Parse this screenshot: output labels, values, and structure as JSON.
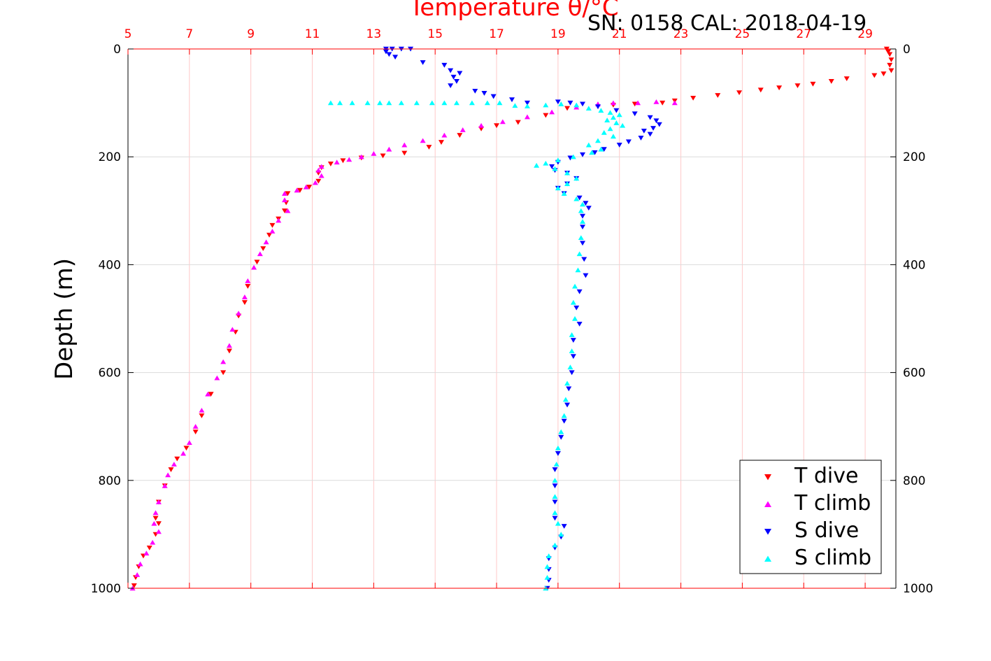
{
  "chart_data": {
    "type": "scatter",
    "subtitle": "SN: 0158  CAL: 2018-04-19",
    "xlabel": "Temperature θ/°C",
    "ylabel": "Depth (m)",
    "xlim": [
      5,
      30
    ],
    "ylim": [
      0,
      1000
    ],
    "y_reversed": true,
    "xticks": [
      5,
      7,
      9,
      11,
      13,
      15,
      17,
      19,
      21,
      23,
      25,
      27,
      29
    ],
    "yticks": [
      0,
      200,
      400,
      600,
      800,
      1000
    ],
    "x_axis_position": "top",
    "grid": true,
    "legend_position": "bottom-right",
    "colors": {
      "axis_top": "#ff0000",
      "x_grid": "#ffc8c8",
      "y_grid": "#dcdcdc"
    },
    "series": [
      {
        "name": "T dive",
        "marker": "triangle-down",
        "color": "#ff0000",
        "points": [
          [
            29.7,
            0
          ],
          [
            29.75,
            5
          ],
          [
            29.8,
            10
          ],
          [
            29.85,
            20
          ],
          [
            29.8,
            30
          ],
          [
            29.85,
            40
          ],
          [
            29.6,
            46
          ],
          [
            29.3,
            49
          ],
          [
            28.4,
            55
          ],
          [
            27.9,
            60
          ],
          [
            27.3,
            65
          ],
          [
            26.8,
            68
          ],
          [
            26.2,
            72
          ],
          [
            25.6,
            76
          ],
          [
            24.9,
            81
          ],
          [
            24.2,
            86
          ],
          [
            23.4,
            91
          ],
          [
            22.8,
            96
          ],
          [
            22.4,
            100
          ],
          [
            21.5,
            102
          ],
          [
            20.8,
            104
          ],
          [
            19.3,
            110
          ],
          [
            18.6,
            123
          ],
          [
            17.7,
            136
          ],
          [
            17.0,
            142
          ],
          [
            16.5,
            148
          ],
          [
            15.8,
            160
          ],
          [
            15.2,
            173
          ],
          [
            14.8,
            182
          ],
          [
            14.0,
            193
          ],
          [
            13.3,
            198
          ],
          [
            12.6,
            202
          ],
          [
            12.0,
            207
          ],
          [
            11.6,
            213
          ],
          [
            11.3,
            220
          ],
          [
            11.2,
            230
          ],
          [
            11.2,
            245
          ],
          [
            10.9,
            256
          ],
          [
            10.6,
            262
          ],
          [
            10.2,
            268
          ],
          [
            10.15,
            285
          ],
          [
            10.1,
            300
          ],
          [
            9.9,
            315
          ],
          [
            9.7,
            327
          ],
          [
            9.6,
            345
          ],
          [
            9.4,
            370
          ],
          [
            9.2,
            395
          ],
          [
            8.9,
            440
          ],
          [
            8.8,
            470
          ],
          [
            8.6,
            495
          ],
          [
            8.5,
            525
          ],
          [
            8.3,
            560
          ],
          [
            8.1,
            600
          ],
          [
            7.7,
            640
          ],
          [
            7.4,
            680
          ],
          [
            7.2,
            710
          ],
          [
            6.9,
            740
          ],
          [
            6.6,
            760
          ],
          [
            6.4,
            780
          ],
          [
            6.2,
            810
          ],
          [
            6.0,
            840
          ],
          [
            5.9,
            870
          ],
          [
            6.0,
            880
          ],
          [
            5.9,
            900
          ],
          [
            5.7,
            925
          ],
          [
            5.5,
            940
          ],
          [
            5.35,
            960
          ],
          [
            5.25,
            980
          ],
          [
            5.2,
            995
          ]
        ]
      },
      {
        "name": "T climb",
        "marker": "triangle-up",
        "color": "#ff00ff",
        "points": [
          [
            22.8,
            100
          ],
          [
            22.2,
            98
          ],
          [
            21.6,
            100
          ],
          [
            20.8,
            100
          ],
          [
            20.3,
            102
          ],
          [
            19.6,
            108
          ],
          [
            18.8,
            117
          ],
          [
            18.0,
            126
          ],
          [
            17.2,
            135
          ],
          [
            16.5,
            142
          ],
          [
            15.9,
            150
          ],
          [
            15.3,
            160
          ],
          [
            14.6,
            170
          ],
          [
            14.0,
            178
          ],
          [
            13.5,
            186
          ],
          [
            13.0,
            194
          ],
          [
            12.6,
            200
          ],
          [
            12.2,
            205
          ],
          [
            11.8,
            210
          ],
          [
            11.3,
            218
          ],
          [
            11.2,
            225
          ],
          [
            11.3,
            235
          ],
          [
            11.1,
            248
          ],
          [
            10.8,
            256
          ],
          [
            10.5,
            262
          ],
          [
            10.1,
            268
          ],
          [
            10.1,
            280
          ],
          [
            10.2,
            300
          ],
          [
            9.9,
            318
          ],
          [
            9.7,
            338
          ],
          [
            9.5,
            358
          ],
          [
            9.3,
            380
          ],
          [
            9.1,
            405
          ],
          [
            8.9,
            430
          ],
          [
            8.8,
            460
          ],
          [
            8.6,
            490
          ],
          [
            8.4,
            520
          ],
          [
            8.3,
            550
          ],
          [
            8.1,
            580
          ],
          [
            7.9,
            610
          ],
          [
            7.6,
            640
          ],
          [
            7.4,
            670
          ],
          [
            7.2,
            700
          ],
          [
            7.0,
            730
          ],
          [
            6.8,
            750
          ],
          [
            6.5,
            770
          ],
          [
            6.3,
            790
          ],
          [
            6.2,
            810
          ],
          [
            6.0,
            840
          ],
          [
            5.9,
            860
          ],
          [
            5.85,
            880
          ],
          [
            6.0,
            895
          ],
          [
            5.8,
            915
          ],
          [
            5.6,
            935
          ],
          [
            5.4,
            955
          ],
          [
            5.3,
            975
          ],
          [
            5.15,
            1000
          ]
        ]
      },
      {
        "name": "S dive",
        "marker": "triangle-down",
        "color": "#0000ff",
        "points": [
          [
            13.4,
            0
          ],
          [
            13.6,
            0
          ],
          [
            13.9,
            0
          ],
          [
            14.2,
            0
          ],
          [
            13.4,
            5
          ],
          [
            13.5,
            10
          ],
          [
            13.7,
            15
          ],
          [
            14.6,
            25
          ],
          [
            15.3,
            30
          ],
          [
            15.5,
            40
          ],
          [
            15.8,
            45
          ],
          [
            15.6,
            52
          ],
          [
            15.7,
            60
          ],
          [
            15.5,
            68
          ],
          [
            16.3,
            78
          ],
          [
            16.6,
            82
          ],
          [
            16.9,
            88
          ],
          [
            17.5,
            94
          ],
          [
            18.0,
            100
          ],
          [
            19.0,
            98
          ],
          [
            19.4,
            100
          ],
          [
            19.8,
            102
          ],
          [
            20.3,
            107
          ],
          [
            20.9,
            114
          ],
          [
            21.5,
            120
          ],
          [
            22.0,
            127
          ],
          [
            22.2,
            133
          ],
          [
            22.3,
            140
          ],
          [
            22.1,
            147
          ],
          [
            21.8,
            152
          ],
          [
            22.0,
            158
          ],
          [
            21.7,
            165
          ],
          [
            21.3,
            172
          ],
          [
            21.0,
            178
          ],
          [
            20.5,
            186
          ],
          [
            20.2,
            192
          ],
          [
            19.8,
            196
          ],
          [
            19.4,
            202
          ],
          [
            19.0,
            210
          ],
          [
            18.8,
            218
          ],
          [
            18.9,
            225
          ],
          [
            19.3,
            230
          ],
          [
            19.6,
            240
          ],
          [
            19.3,
            250
          ],
          [
            19.0,
            258
          ],
          [
            19.2,
            268
          ],
          [
            19.7,
            276
          ],
          [
            19.9,
            286
          ],
          [
            20.0,
            295
          ],
          [
            19.8,
            310
          ],
          [
            19.8,
            330
          ],
          [
            19.8,
            360
          ],
          [
            19.85,
            390
          ],
          [
            19.9,
            420
          ],
          [
            19.7,
            450
          ],
          [
            19.6,
            480
          ],
          [
            19.7,
            510
          ],
          [
            19.5,
            540
          ],
          [
            19.5,
            570
          ],
          [
            19.45,
            600
          ],
          [
            19.35,
            630
          ],
          [
            19.3,
            660
          ],
          [
            19.2,
            690
          ],
          [
            19.1,
            720
          ],
          [
            19.0,
            750
          ],
          [
            18.9,
            780
          ],
          [
            18.9,
            810
          ],
          [
            18.9,
            840
          ],
          [
            18.9,
            870
          ],
          [
            19.2,
            885
          ],
          [
            19.1,
            905
          ],
          [
            18.9,
            925
          ],
          [
            18.7,
            945
          ],
          [
            18.7,
            965
          ],
          [
            18.7,
            985
          ],
          [
            18.65,
            1000
          ]
        ]
      },
      {
        "name": "S climb",
        "marker": "triangle-up",
        "color": "#00ffff",
        "points": [
          [
            11.6,
            100
          ],
          [
            11.9,
            100
          ],
          [
            12.3,
            100
          ],
          [
            12.8,
            100
          ],
          [
            13.2,
            100
          ],
          [
            13.5,
            100
          ],
          [
            13.9,
            100
          ],
          [
            14.4,
            100
          ],
          [
            14.9,
            100
          ],
          [
            15.3,
            100
          ],
          [
            15.7,
            100
          ],
          [
            16.2,
            100
          ],
          [
            16.7,
            100
          ],
          [
            17.1,
            100
          ],
          [
            17.6,
            105
          ],
          [
            18.0,
            106
          ],
          [
            18.6,
            104
          ],
          [
            19.1,
            102
          ],
          [
            19.6,
            104
          ],
          [
            20.0,
            110
          ],
          [
            20.4,
            114
          ],
          [
            20.7,
            118
          ],
          [
            21.0,
            122
          ],
          [
            20.8,
            127
          ],
          [
            20.6,
            132
          ],
          [
            20.9,
            137
          ],
          [
            21.1,
            142
          ],
          [
            20.7,
            148
          ],
          [
            20.5,
            155
          ],
          [
            20.8,
            162
          ],
          [
            20.3,
            170
          ],
          [
            20.0,
            178
          ],
          [
            20.4,
            186
          ],
          [
            20.1,
            192
          ],
          [
            19.5,
            200
          ],
          [
            19.0,
            206
          ],
          [
            18.6,
            212
          ],
          [
            18.3,
            216
          ],
          [
            18.9,
            222
          ],
          [
            19.3,
            230
          ],
          [
            19.6,
            240
          ],
          [
            19.3,
            250
          ],
          [
            19.0,
            258
          ],
          [
            19.2,
            268
          ],
          [
            19.6,
            278
          ],
          [
            19.8,
            288
          ],
          [
            19.75,
            300
          ],
          [
            19.8,
            320
          ],
          [
            19.75,
            350
          ],
          [
            19.7,
            380
          ],
          [
            19.65,
            410
          ],
          [
            19.55,
            440
          ],
          [
            19.5,
            470
          ],
          [
            19.55,
            500
          ],
          [
            19.45,
            530
          ],
          [
            19.45,
            560
          ],
          [
            19.4,
            590
          ],
          [
            19.3,
            620
          ],
          [
            19.25,
            650
          ],
          [
            19.2,
            680
          ],
          [
            19.1,
            710
          ],
          [
            19.0,
            740
          ],
          [
            18.95,
            770
          ],
          [
            18.9,
            800
          ],
          [
            18.9,
            830
          ],
          [
            18.9,
            860
          ],
          [
            19.0,
            880
          ],
          [
            19.1,
            900
          ],
          [
            18.9,
            920
          ],
          [
            18.7,
            940
          ],
          [
            18.65,
            960
          ],
          [
            18.65,
            980
          ],
          [
            18.6,
            1000
          ]
        ]
      }
    ]
  }
}
